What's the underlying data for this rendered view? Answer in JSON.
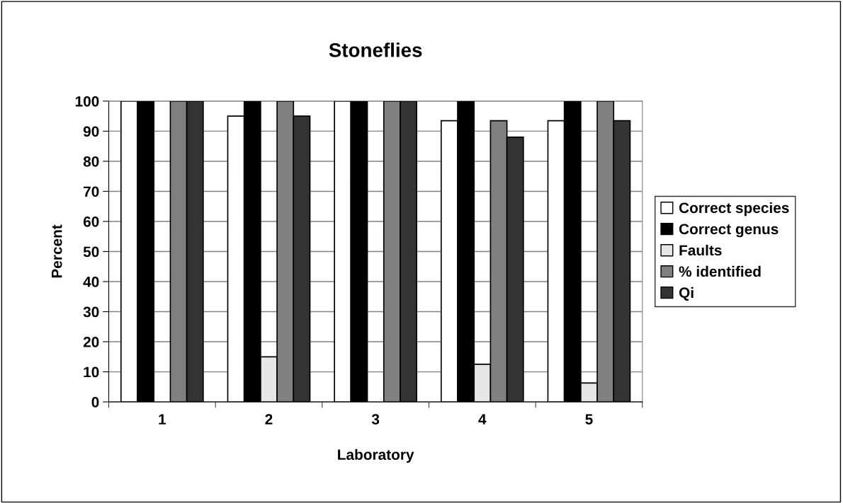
{
  "chart_data": {
    "type": "bar",
    "title": "Stoneflies",
    "xlabel": "Laboratory",
    "ylabel": "Percent",
    "categories": [
      "1",
      "2",
      "3",
      "4",
      "5"
    ],
    "series": [
      {
        "name": "Correct species",
        "color": "#ffffff",
        "values": [
          100,
          95,
          100,
          93.5,
          93.5
        ]
      },
      {
        "name": "Correct genus",
        "color": "#000000",
        "values": [
          100,
          100,
          100,
          100,
          100
        ]
      },
      {
        "name": "Faults",
        "color": "#e6e6e6",
        "values": [
          0,
          15,
          0,
          12.5,
          6.3
        ]
      },
      {
        "name": "% identified",
        "color": "#808080",
        "values": [
          100,
          100,
          100,
          93.5,
          100
        ]
      },
      {
        "name": "Qi",
        "color": "#333333",
        "values": [
          100,
          95,
          100,
          88,
          93.5
        ]
      }
    ],
    "ylim": [
      0,
      100
    ],
    "yticks": [
      0,
      10,
      20,
      30,
      40,
      50,
      60,
      70,
      80,
      90,
      100
    ],
    "grid": "y",
    "legend": "right"
  }
}
